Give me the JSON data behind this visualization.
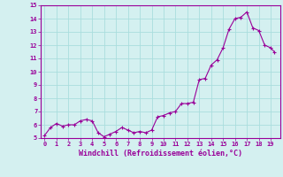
{
  "x_values": [
    0,
    0.5,
    1,
    1.5,
    2,
    2.5,
    3,
    3.5,
    4,
    4.5,
    5,
    5.5,
    6,
    6.5,
    7,
    7.5,
    8,
    8.5,
    9,
    9.5,
    10,
    10.5,
    11,
    11.5,
    12,
    12.5,
    13,
    13.5,
    14,
    14.5,
    15,
    15.5,
    16,
    16.5,
    17,
    17.5,
    18,
    18.5,
    19,
    19.3
  ],
  "y_values": [
    5.2,
    5.8,
    6.1,
    5.9,
    6.0,
    6.0,
    6.3,
    6.4,
    6.3,
    5.4,
    5.1,
    5.3,
    5.5,
    5.8,
    5.6,
    5.4,
    5.5,
    5.4,
    5.6,
    6.6,
    6.7,
    6.9,
    7.0,
    7.6,
    7.6,
    7.7,
    9.4,
    9.5,
    10.5,
    10.9,
    11.8,
    13.2,
    14.0,
    14.1,
    14.5,
    13.3,
    13.1,
    12.0,
    11.8,
    11.5
  ],
  "line_color": "#990099",
  "marker_color": "#990099",
  "bg_color": "#d4f0f0",
  "grid_color": "#aadddd",
  "axis_color": "#990099",
  "border_color": "#336666",
  "xlabel": "Windchill (Refroidissement éolien,°C)",
  "xlabel_color": "#990099",
  "tick_color": "#990099",
  "xlim": [
    -0.3,
    19.8
  ],
  "ylim": [
    5,
    15
  ],
  "yticks": [
    5,
    6,
    7,
    8,
    9,
    10,
    11,
    12,
    13,
    14,
    15
  ],
  "xticks": [
    0,
    1,
    2,
    3,
    4,
    5,
    6,
    7,
    8,
    9,
    10,
    11,
    12,
    13,
    14,
    15,
    16,
    17,
    18,
    19
  ],
  "marker_size": 3.5,
  "line_width": 0.8
}
